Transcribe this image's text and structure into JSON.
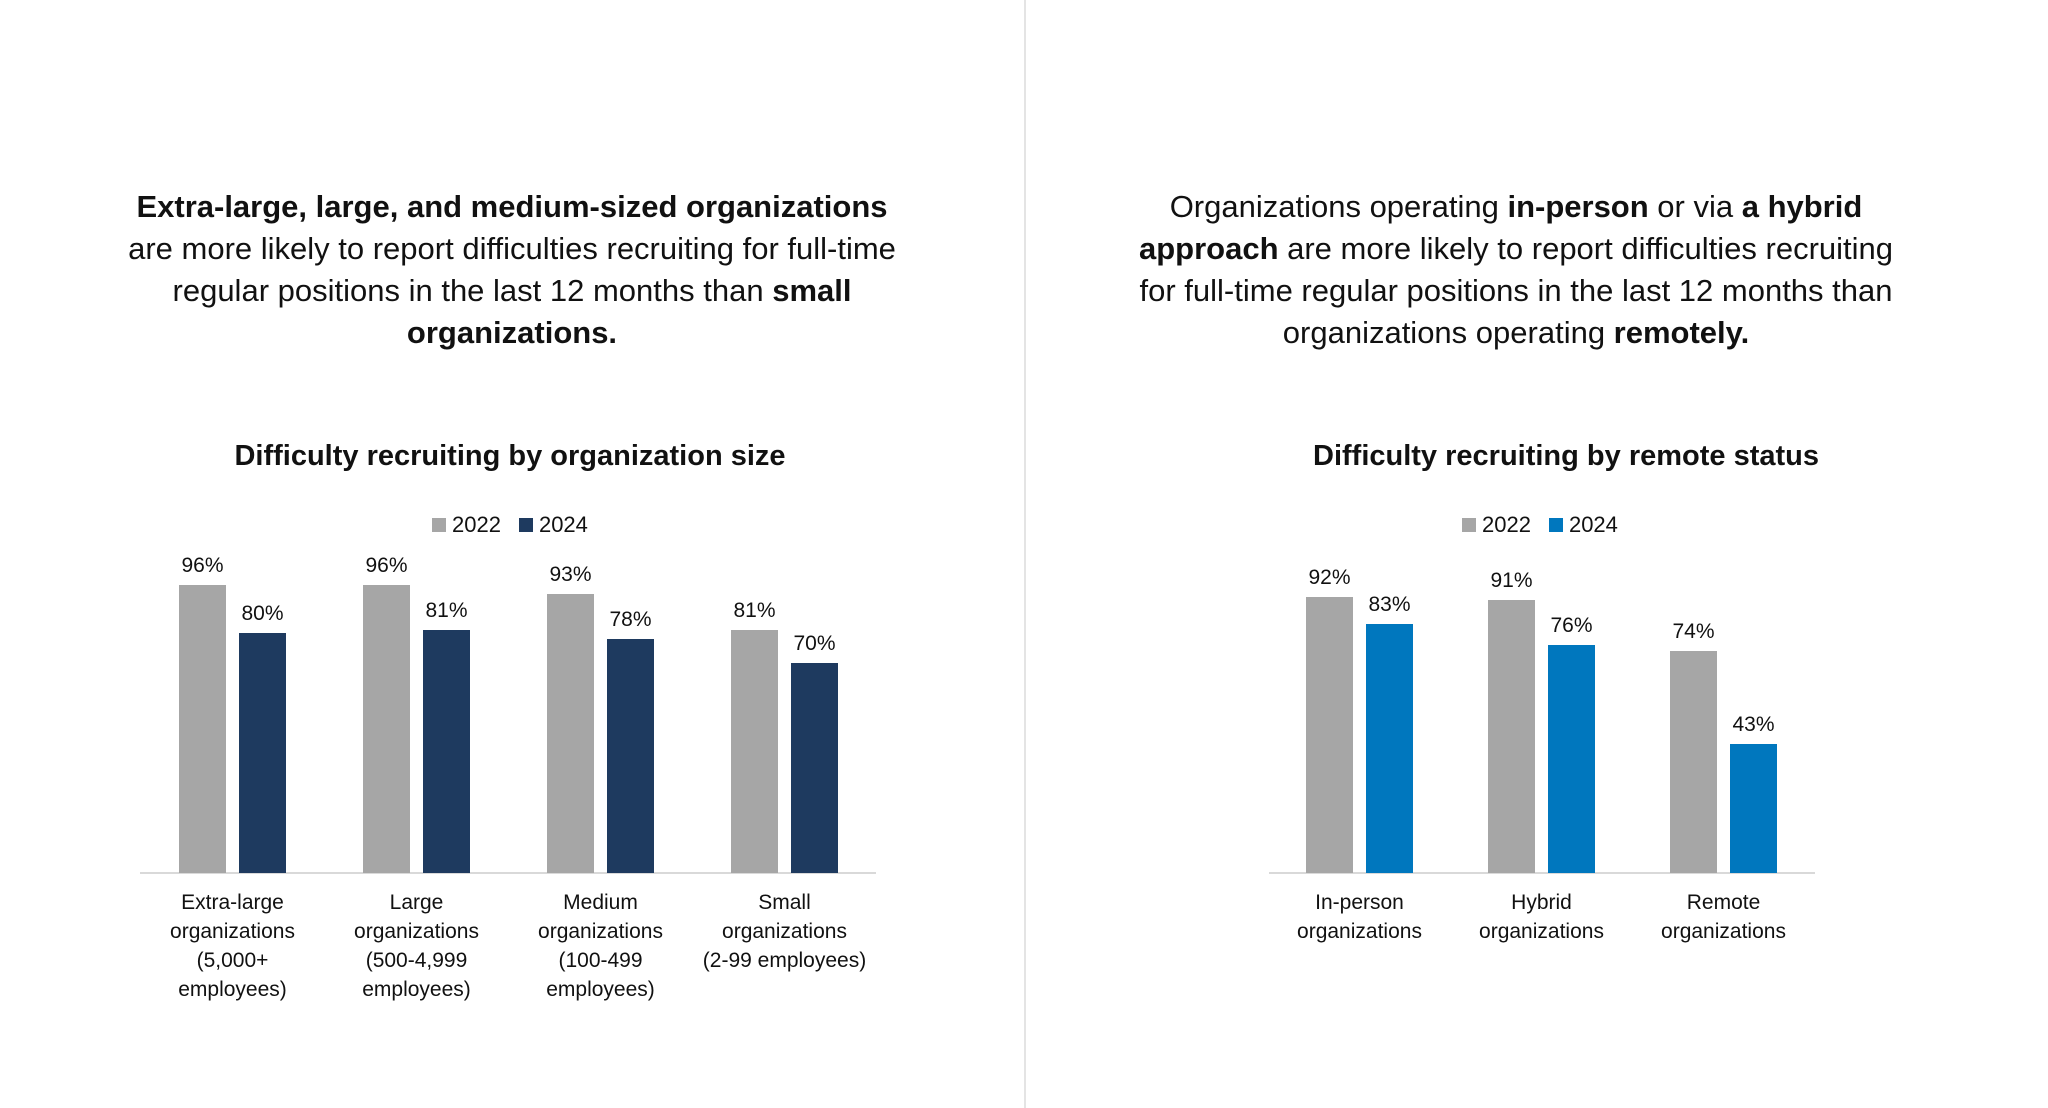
{
  "colors": {
    "gray_2022": "#a6a6a6",
    "navy_2024": "#1e3a5f",
    "blue_2024": "#0077be",
    "axis": "#d9d9d9"
  },
  "left_headline": {
    "bold1": "Extra-large, large, and medium-sized organizations",
    "text1": " are more likely to report difficulties recruiting for full-time regular positions in the last 12 months than ",
    "bold2": "small organizations."
  },
  "right_headline": {
    "text1": "Organizations operating ",
    "bold1": "in-person",
    "text2": " or via ",
    "bold2": "a hybrid approach",
    "text3": " are more likely to report difficulties recruiting for full-time regular positions in the last 12 months than organizations operating ",
    "bold3": "remotely."
  },
  "chart_data": [
    {
      "type": "bar",
      "title": "Difficulty recruiting by organization size",
      "categories": [
        [
          "Extra-large",
          "organizations",
          "(5,000+",
          "employees)"
        ],
        [
          "Large",
          "organizations",
          "(500-4,999",
          "employees)"
        ],
        [
          "Medium",
          "organizations",
          "(100-499",
          "employees)"
        ],
        [
          "Small",
          "organizations",
          "(2-99 employees)"
        ]
      ],
      "series": [
        {
          "name": "2022",
          "values": [
            96,
            96,
            93,
            81
          ],
          "labels": [
            "96%",
            "96%",
            "93%",
            "81%"
          ],
          "color": "#a6a6a6"
        },
        {
          "name": "2024",
          "values": [
            80,
            81,
            78,
            70
          ],
          "labels": [
            "80%",
            "81%",
            "78%",
            "70%"
          ],
          "color": "#1e3a5f"
        }
      ],
      "ylim": [
        0,
        100
      ],
      "grid": false,
      "legend": "top-center"
    },
    {
      "type": "bar",
      "title": "Difficulty recruiting by remote status",
      "categories": [
        [
          "In-person",
          "organizations"
        ],
        [
          "Hybrid",
          "organizations"
        ],
        [
          "Remote",
          "organizations"
        ]
      ],
      "series": [
        {
          "name": "2022",
          "values": [
            92,
            91,
            74
          ],
          "labels": [
            "92%",
            "91%",
            "74%"
          ],
          "color": "#a6a6a6"
        },
        {
          "name": "2024",
          "values": [
            83,
            76,
            43
          ],
          "labels": [
            "83%",
            "76%",
            "43%"
          ],
          "color": "#0077be"
        }
      ],
      "ylim": [
        0,
        100
      ],
      "grid": false,
      "legend": "top-center"
    }
  ]
}
